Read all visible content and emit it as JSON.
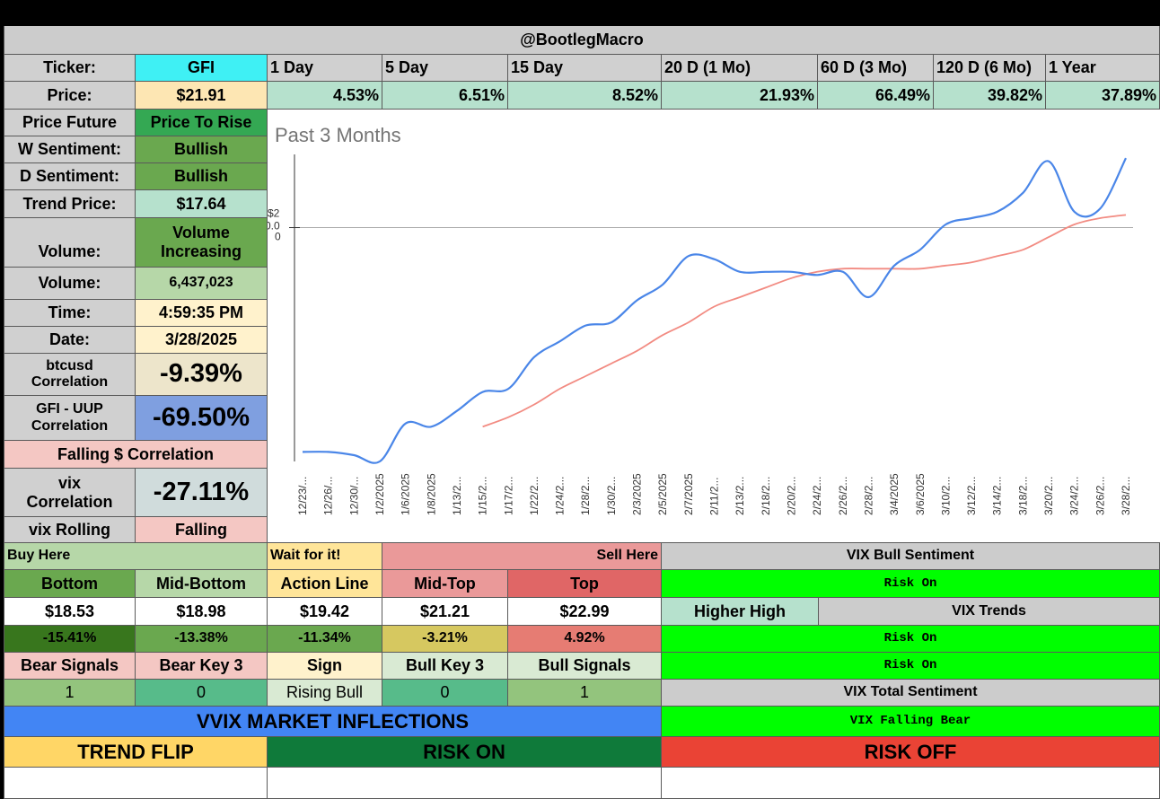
{
  "header": {
    "title": "@BootlegMacro"
  },
  "ticker": {
    "label": "Ticker:",
    "value": "GFI"
  },
  "periods": [
    "1 Day",
    "5 Day",
    "15 Day",
    "20 D (1 Mo)",
    "60 D (3 Mo)",
    "120 D (6 Mo)",
    "1 Year"
  ],
  "price": {
    "label": "Price:",
    "value": "$21.91"
  },
  "returns": [
    "4.53%",
    "6.51%",
    "8.52%",
    "21.93%",
    "66.49%",
    "39.82%",
    "37.89%"
  ],
  "stats": {
    "price_future_label": "Price Future",
    "price_future_value": "Price To Rise",
    "w_sentiment_label": "W Sentiment:",
    "w_sentiment_value": "Bullish",
    "d_sentiment_label": "D Sentiment:",
    "d_sentiment_value": "Bullish",
    "trend_price_label": "Trend Price:",
    "trend_price_value": "$17.64",
    "volume_trend_label": "Volume:",
    "volume_trend_value": "Volume Increasing",
    "volume_label": "Volume:",
    "volume_value": "6,437,023",
    "time_label": "Time:",
    "time_value": "4:59:35 PM",
    "date_label": "Date:",
    "date_value": "3/28/2025",
    "btc_corr_label": "btcusd Correlation",
    "btc_corr_value": "-9.39%",
    "uup_corr_label": "GFI - UUP Correlation",
    "uup_corr_value": "-69.50%",
    "falling_corr_label": "Falling $ Correlation",
    "vix_corr_label": "vix Correlation",
    "vix_corr_value": "-27.11%",
    "vix_rolling_label": "vix Rolling",
    "vix_rolling_value": "Falling"
  },
  "chart_data": {
    "type": "line",
    "title": "Past 3 Months",
    "ytick_label_lines": [
      "$2",
      "0.0",
      "0"
    ],
    "x_labels": [
      "12/23/...",
      "12/26/...",
      "12/30/...",
      "1/2/2025",
      "1/6/2025",
      "1/8/2025",
      "1/13/2...",
      "1/15/2...",
      "1/17/2...",
      "1/22/2...",
      "1/24/2...",
      "1/28/2...",
      "1/30/2...",
      "2/3/2025",
      "2/5/2025",
      "2/7/2025",
      "2/11/2...",
      "2/13/2...",
      "2/18/2...",
      "2/20/2...",
      "2/24/2...",
      "2/26/2...",
      "2/28/2...",
      "3/4/2025",
      "3/6/2025",
      "3/10/2...",
      "3/12/2...",
      "3/14/2...",
      "3/18/2...",
      "3/20/2...",
      "3/24/2...",
      "3/26/2...",
      "3/28/2..."
    ],
    "reference_value": 20.0,
    "ylim": [
      12.6,
      22.6
    ],
    "series": [
      {
        "name": "Price",
        "color": "#4a86e8",
        "values": [
          12.9,
          12.9,
          12.8,
          12.6,
          13.8,
          13.7,
          14.2,
          14.8,
          14.9,
          15.9,
          16.4,
          16.9,
          17.0,
          17.7,
          18.2,
          19.1,
          19.0,
          18.6,
          18.6,
          18.6,
          18.5,
          18.6,
          17.8,
          18.8,
          19.3,
          20.1,
          20.3,
          20.5,
          21.1,
          22.1,
          20.5,
          20.6,
          22.2
        ]
      },
      {
        "name": "Trend",
        "color": "#f28b82",
        "values": [
          null,
          null,
          null,
          null,
          null,
          null,
          null,
          13.7,
          14.0,
          14.4,
          14.9,
          15.3,
          15.7,
          16.1,
          16.6,
          17.0,
          17.5,
          17.8,
          18.1,
          18.4,
          18.6,
          18.7,
          18.7,
          18.7,
          18.7,
          18.8,
          18.9,
          19.1,
          19.3,
          19.7,
          20.1,
          20.3,
          20.4
        ]
      }
    ]
  },
  "levels": {
    "buy_here": "Buy Here",
    "wait": "Wait for it!",
    "sell_here": "Sell Here",
    "headers": [
      "Bottom",
      "Mid-Bottom",
      "Action Line",
      "Mid-Top",
      "Top"
    ],
    "prices": [
      "$18.53",
      "$18.98",
      "$19.42",
      "$21.21",
      "$22.99"
    ],
    "pcts": [
      "-15.41%",
      "-13.38%",
      "-11.34%",
      "-3.21%",
      "4.92%"
    ]
  },
  "signals": {
    "headers": [
      "Bear Signals",
      "Bear Key 3",
      "Sign",
      "Bull Key 3",
      "Bull Signals"
    ],
    "values": [
      "1",
      "0",
      "Rising Bull",
      "0",
      "1"
    ]
  },
  "vix": {
    "bull_sentiment_label": "VIX Bull Sentiment",
    "risk_on_1": "Risk On",
    "higher_high": "Higher High",
    "trends_label": "VIX Trends",
    "risk_on_2": "Risk On",
    "risk_on_3": "Risk On",
    "total_sentiment_label": "VIX Total Sentiment",
    "falling_bear": "VIX Falling Bear"
  },
  "vvix": {
    "title": "VVIX MARKET INFLECTIONS",
    "trend_flip": "TREND FLIP",
    "risk_on": "RISK ON",
    "risk_off": "RISK OFF"
  }
}
